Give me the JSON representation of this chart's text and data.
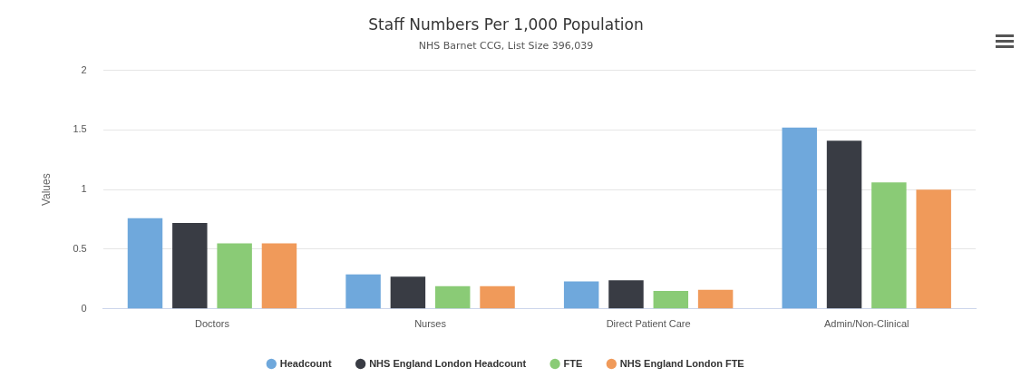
{
  "chart_data": {
    "type": "bar",
    "title": "Staff Numbers Per 1,000 Population",
    "subtitle": "NHS Barnet CCG, List Size 396,039",
    "ylabel": "Values",
    "categories": [
      "Doctors",
      "Nurses",
      "Direct Patient Care",
      "Admin/Non-Clinical"
    ],
    "series": [
      {
        "name": "Headcount",
        "color": "#6fa8dc",
        "values": [
          0.76,
          0.29,
          0.23,
          1.52
        ]
      },
      {
        "name": "NHS England London Headcount",
        "color": "#393c44",
        "values": [
          0.72,
          0.27,
          0.24,
          1.41
        ]
      },
      {
        "name": "FTE",
        "color": "#8acb76",
        "values": [
          0.55,
          0.19,
          0.15,
          1.06
        ]
      },
      {
        "name": "NHS England London FTE",
        "color": "#f09a5a",
        "values": [
          0.55,
          0.19,
          0.16,
          1.0
        ]
      }
    ],
    "ylim": [
      0,
      2
    ],
    "yticks": [
      0,
      0.5,
      1,
      1.5,
      2
    ],
    "grid": "y",
    "legend": "bottom"
  }
}
